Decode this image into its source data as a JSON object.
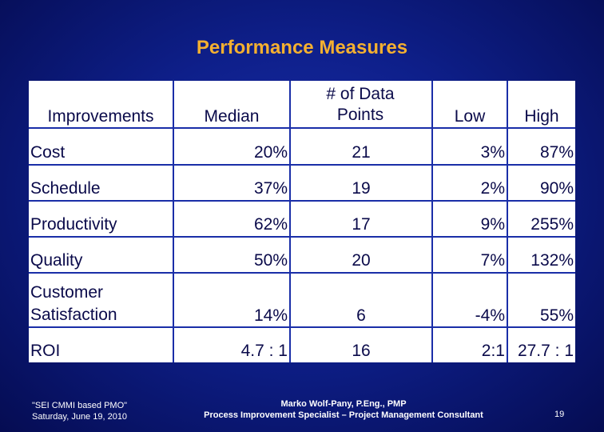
{
  "slide": {
    "title": "Performance Measures"
  },
  "table": {
    "headers": [
      "Improvements",
      "Median",
      "# of Data Points",
      "Low",
      "High"
    ],
    "rows": [
      {
        "label": "Cost",
        "median": "20%",
        "points": "21",
        "low": "3%",
        "high": "87%"
      },
      {
        "label": "Schedule",
        "median": "37%",
        "points": "19",
        "low": "2%",
        "high": "90%"
      },
      {
        "label": "Productivity",
        "median": "62%",
        "points": "17",
        "low": "9%",
        "high": "255%"
      },
      {
        "label": "Quality",
        "median": "50%",
        "points": "20",
        "low": "7%",
        "high": "132%"
      },
      {
        "label": "Customer Satisfaction",
        "median": "14%",
        "points": "6",
        "low": "-4%",
        "high": "55%"
      },
      {
        "label": "ROI",
        "median": "4.7 : 1",
        "points": "16",
        "low": "2:1",
        "high": "27.7 : 1"
      }
    ]
  },
  "footer": {
    "left_line1": "\"SEI CMMI based PMO\"",
    "left_line2": "Saturday, June 19, 2010",
    "center_line1": "Marko Wolf-Pany, P.Eng., PMP",
    "center_line2": "Process Improvement Specialist – Project Management Consultant",
    "page_number": "19"
  },
  "colors": {
    "background": "#0e1f8a",
    "title": "#f4b030",
    "cell_text": "#0a0a4a",
    "cell_bg": "#ffffff"
  }
}
